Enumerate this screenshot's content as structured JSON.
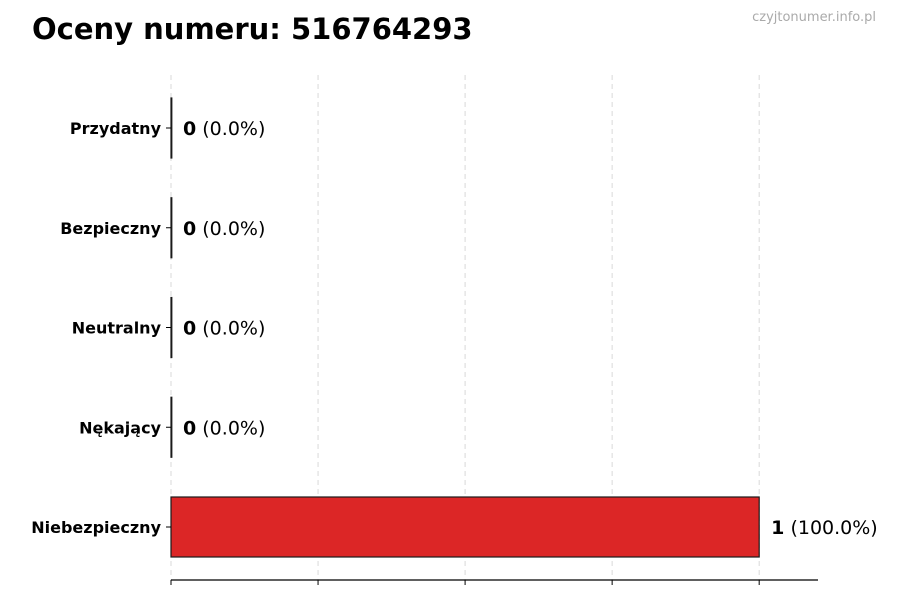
{
  "chart_data": {
    "type": "bar",
    "orientation": "horizontal",
    "title": "Oceny numeru: 516764293",
    "watermark": "czyjtonumer.info.pl",
    "categories": [
      "Przydatny",
      "Bezpieczny",
      "Neutralny",
      "Nękający",
      "Niebezpieczny"
    ],
    "values": [
      0,
      0,
      0,
      0,
      1
    ],
    "labels": [
      "(0.0%)",
      "(0.0%)",
      "(0.0%)",
      "(0.0%)",
      "(100.0%)"
    ],
    "xlim": [
      0,
      1.1
    ],
    "xticks": [
      0,
      0.25,
      0.5,
      0.75,
      1.0
    ],
    "xtick_labels_shown": false,
    "grid": "vertical dashed",
    "colors": {
      "bar": "#dc2626",
      "edge": "#1a1a1a",
      "grid": "#d9d9d9"
    }
  }
}
